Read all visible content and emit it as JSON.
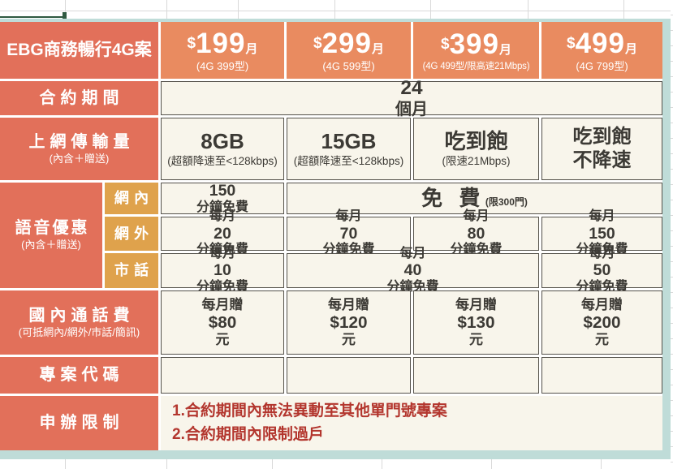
{
  "colors": {
    "coral": "#E2705A",
    "orange": "#E98B60",
    "gold": "#DFA24C",
    "cream": "#F8F5EB",
    "teal": "#BFDCD8",
    "red": "#B3362E",
    "bord": "#55524B",
    "ink": "#3C3A35",
    "green": "#2F5A41"
  },
  "table": {
    "title": "EBG商務暢行4G案",
    "plans": [
      {
        "cur": "$",
        "num": "199",
        "per": "月",
        "sub": "(4G 399型)"
      },
      {
        "cur": "$",
        "num": "299",
        "per": "月",
        "sub": "(4G 599型)"
      },
      {
        "cur": "$",
        "num": "399",
        "per": "月",
        "sub": "(4G 499型/限高速21Mbps)"
      },
      {
        "cur": "$",
        "num": "499",
        "per": "月",
        "sub": "(4G 799型)"
      }
    ],
    "contract": {
      "label": "合約期間",
      "value": "24個月"
    },
    "data_row": {
      "label": "上網傳輸量",
      "sublabel": "(內含＋贈送)",
      "cells": [
        {
          "main": "8GB",
          "sub": "(超額降速至<128kbps)"
        },
        {
          "main": "15GB",
          "sub": "(超額降速至<128kbps)"
        },
        {
          "main": "吃到飽",
          "sub": "(限速21Mbps)"
        },
        {
          "main": "吃到飽",
          "main2": "不降速"
        }
      ]
    },
    "voice": {
      "label": "語音優惠",
      "sublabel": "(內含＋贈送)",
      "net_in": {
        "label": "網內",
        "c1": "150分鐘免費",
        "rest": "免 費",
        "rest_sub": "(限300門)"
      },
      "net_out": {
        "label": "網外",
        "c1": "每月20分鐘免費",
        "c2": "每月70分鐘免費",
        "c3": "每月80分鐘免費",
        "c4": "每月150分鐘免費"
      },
      "local": {
        "label": "市話",
        "c1": "每月10分鐘免費",
        "c23": "每月40分鐘免費",
        "c4": "每月50分鐘免費"
      }
    },
    "calls": {
      "label": "國內通話費",
      "sublabel": "(可抵網內/網外/市話/簡訊)",
      "c1": "每月贈$80元",
      "c2": "每月贈$120元",
      "c3": "每月贈$130元",
      "c4": "每月贈$200元"
    },
    "code": {
      "label": "專案代碼"
    },
    "limits": {
      "label": "申辦限制",
      "line1": "1.合約期間內無法異動至其他單門號專案",
      "line2": "2.合約期間內限制過戶"
    }
  }
}
